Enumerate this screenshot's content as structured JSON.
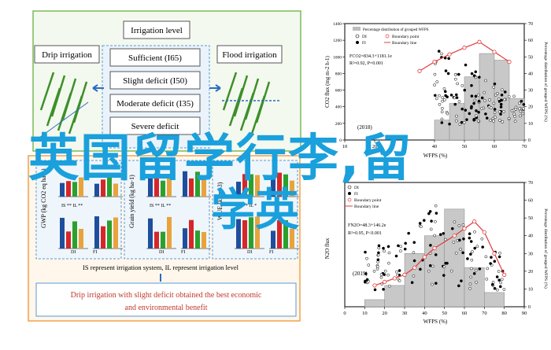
{
  "overlay": {
    "line1": "英国留学行李,留",
    "line2": "学英"
  },
  "diagram": {
    "irrigation_level": "Irrigation level",
    "drip": "Drip irrigation",
    "flood": "Flood irrigation",
    "levels": [
      "Sufficient (I65)",
      "Slight deficit (I50)",
      "Moderate deficit (I35)",
      "Severe deficit"
    ],
    "note": "IS represent irrigation system, IL represent irrigation level",
    "conclusion_line1": "Drip irrigation with slight deficit obtained the best economic",
    "conclusion_line2": "and environmental benefit",
    "panel_ylabels": [
      "GWP (kg CO2 eq ha-1)",
      "Grain yield (kg ha-1)",
      "WUE (kg m-3)"
    ],
    "panel_xlabels": [
      "DI",
      "FI"
    ],
    "panel_labels": [
      "IS **  IL **",
      "IS **  IL **",
      "IS **  IL *"
    ]
  },
  "chart_data": [
    {
      "type": "scatter",
      "title": "",
      "year_label": "(2018)",
      "xlabel": "WFPS (%)",
      "ylabel_left": "CO2 flux (mg m-2 h-1)",
      "ylabel_right": "Percentage distribution of grouped WFPS (%)",
      "xlim": [
        10,
        70
      ],
      "ylim_left": [
        0,
        1400
      ],
      "ylim_right": [
        0,
        70
      ],
      "x_ticks": [
        10,
        20,
        30,
        40,
        50,
        60,
        70
      ],
      "y_ticks_left": [
        0,
        200,
        400,
        600,
        800,
        1000,
        1200,
        1400
      ],
      "y_ticks_right": [
        0,
        10,
        20,
        30,
        40,
        50,
        60,
        70
      ],
      "legend": [
        "Percentage distribution of grouped WFPS",
        "DI",
        "FI",
        "Boundary point",
        "Boundary line"
      ],
      "equation": "FCO2=834.3+1181.1e",
      "r2": "R²=0.92, P=0.001",
      "histogram": {
        "bins": [
          40,
          45,
          50,
          55,
          60,
          65
        ],
        "values": [
          12,
          22,
          38,
          52,
          48,
          25
        ]
      },
      "boundary_points": [
        [
          35,
          830
        ],
        [
          40,
          940
        ],
        [
          45,
          1030
        ],
        [
          50,
          1110
        ],
        [
          55,
          1180
        ],
        [
          60,
          1060
        ],
        [
          65,
          940
        ]
      ]
    },
    {
      "type": "scatter",
      "title": "",
      "year_label": "(2019)",
      "xlabel": "WFPS (%)",
      "ylabel_left": "N2O flux",
      "ylabel_right": "Percentage distribution of grouped WFPS (%)",
      "xlim": [
        0,
        90
      ],
      "ylim_left": [
        0,
        70
      ],
      "ylim_right": [
        0,
        70
      ],
      "x_ticks": [
        0,
        10,
        20,
        30,
        40,
        50,
        60,
        70,
        80,
        90
      ],
      "y_ticks_right": [
        0,
        10,
        20,
        30,
        40,
        50,
        60,
        70
      ],
      "legend": [
        "DI",
        "FI",
        "Boundary point",
        "Boundary line"
      ],
      "equation": "FN2O=48.3+146.2e",
      "r2": "R²=0.95, P<0.001",
      "histogram": {
        "bins": [
          10,
          20,
          30,
          40,
          50,
          60,
          70
        ],
        "values": [
          4,
          12,
          30,
          40,
          55,
          22,
          8
        ]
      },
      "boundary_points": [
        [
          15,
          12
        ],
        [
          20,
          14
        ],
        [
          25,
          16
        ],
        [
          30,
          18
        ],
        [
          35,
          22
        ],
        [
          40,
          28
        ],
        [
          45,
          33
        ],
        [
          55,
          40
        ],
        [
          60,
          44
        ],
        [
          65,
          48
        ],
        [
          70,
          42
        ],
        [
          75,
          30
        ],
        [
          80,
          18
        ]
      ]
    }
  ]
}
